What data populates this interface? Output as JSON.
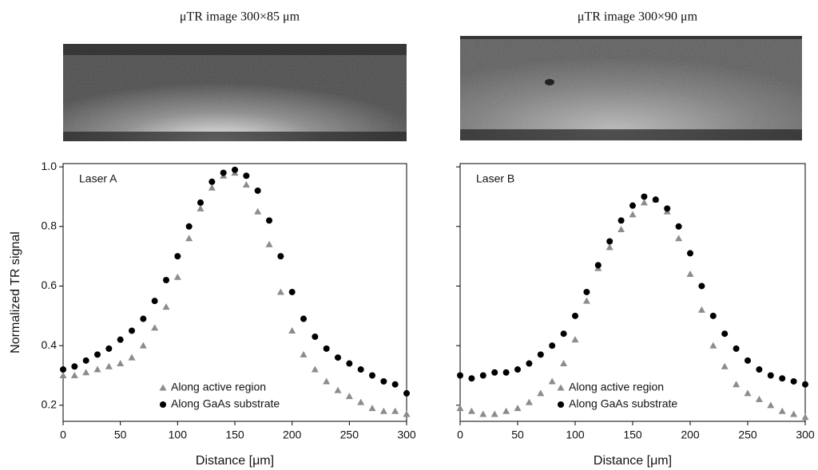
{
  "chart_data": [
    {
      "type": "scatter",
      "image_title": "μTR image 300×85 μm",
      "annotation": "Laser A",
      "y_label": "Normalized TR signal",
      "x_label": "Distance [μm]",
      "x": [
        0,
        10,
        20,
        30,
        40,
        50,
        60,
        70,
        80,
        90,
        100,
        110,
        120,
        130,
        140,
        150,
        160,
        170,
        180,
        190,
        200,
        210,
        220,
        230,
        240,
        250,
        260,
        270,
        280,
        290,
        300
      ],
      "series": [
        {
          "name": "Along active region",
          "color": "#8c8c8c",
          "marker": "triangle",
          "values": [
            0.3,
            0.3,
            0.31,
            0.32,
            0.33,
            0.34,
            0.36,
            0.4,
            0.46,
            0.53,
            0.63,
            0.76,
            0.86,
            0.93,
            0.97,
            0.98,
            0.94,
            0.85,
            0.74,
            0.58,
            0.45,
            0.37,
            0.32,
            0.28,
            0.25,
            0.23,
            0.21,
            0.19,
            0.18,
            0.18,
            0.17
          ]
        },
        {
          "name": "Along GaAs substrate",
          "color": "#000000",
          "marker": "circle",
          "values": [
            0.32,
            0.33,
            0.35,
            0.37,
            0.39,
            0.42,
            0.45,
            0.49,
            0.55,
            0.62,
            0.7,
            0.8,
            0.88,
            0.95,
            0.98,
            0.99,
            0.97,
            0.92,
            0.82,
            0.7,
            0.58,
            0.49,
            0.43,
            0.39,
            0.36,
            0.34,
            0.32,
            0.3,
            0.28,
            0.27,
            0.24
          ]
        }
      ],
      "xlim": [
        0,
        300
      ],
      "xticks": [
        0,
        50,
        100,
        150,
        200,
        250,
        300
      ],
      "ylim": [
        0.146,
        1.011
      ],
      "yticks": [
        0.2,
        0.4,
        0.6,
        0.8,
        {
          "value": 1,
          "label": "1.0"
        }
      ],
      "show_ytick_labels": true,
      "legend": "lower center"
    },
    {
      "type": "scatter",
      "image_title": "μTR image 300×90 μm",
      "annotation": "Laser B",
      "x_label": "Distance [μm]",
      "x": [
        0,
        10,
        20,
        30,
        40,
        50,
        60,
        70,
        80,
        90,
        100,
        110,
        120,
        130,
        140,
        150,
        160,
        170,
        180,
        190,
        200,
        210,
        220,
        230,
        240,
        250,
        260,
        270,
        280,
        290,
        300
      ],
      "series": [
        {
          "name": "Along active region",
          "color": "#8c8c8c",
          "marker": "triangle",
          "values": [
            0.19,
            0.18,
            0.17,
            0.17,
            0.18,
            0.19,
            0.21,
            0.24,
            0.28,
            0.34,
            0.42,
            0.55,
            0.66,
            0.73,
            0.79,
            0.84,
            0.88,
            0.89,
            0.85,
            0.76,
            0.64,
            0.52,
            0.4,
            0.33,
            0.27,
            0.24,
            0.22,
            0.2,
            0.18,
            0.17,
            0.16
          ]
        },
        {
          "name": "Along GaAs substrate",
          "color": "#000000",
          "marker": "circle",
          "values": [
            0.3,
            0.29,
            0.3,
            0.31,
            0.31,
            0.32,
            0.34,
            0.37,
            0.4,
            0.44,
            0.5,
            0.58,
            0.67,
            0.75,
            0.82,
            0.87,
            0.9,
            0.89,
            0.86,
            0.8,
            0.71,
            0.6,
            0.5,
            0.44,
            0.39,
            0.35,
            0.32,
            0.3,
            0.29,
            0.28,
            0.27
          ]
        }
      ],
      "xlim": [
        0,
        300
      ],
      "xticks": [
        0,
        50,
        100,
        150,
        200,
        250,
        300
      ],
      "ylim": [
        0.146,
        1.011
      ],
      "yticks": [
        0.2,
        0.4,
        0.6,
        0.8,
        1.0
      ],
      "show_ytick_labels": false,
      "legend": "lower center"
    }
  ]
}
